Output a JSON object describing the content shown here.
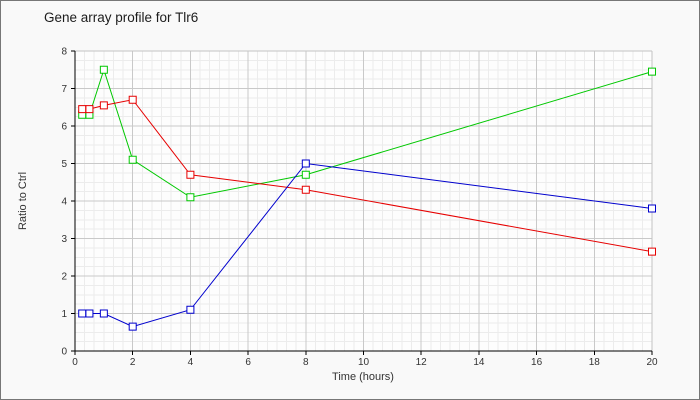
{
  "window": {
    "title": "Gene array profile for Tlr6"
  },
  "chart_data": {
    "type": "line",
    "title": "Gene array profile for Tlr6",
    "xlabel": "Time (hours)",
    "ylabel": "Ratio to Ctrl",
    "xlim": [
      0,
      20
    ],
    "ylim": [
      0,
      8
    ],
    "x_ticks": [
      0,
      2,
      4,
      6,
      8,
      10,
      12,
      14,
      16,
      18,
      20
    ],
    "y_ticks": [
      0,
      1,
      2,
      3,
      4,
      5,
      6,
      7,
      8
    ],
    "grid": "major+minor",
    "legend": "none",
    "marker": "open-square",
    "x": [
      0.25,
      0.5,
      1,
      2,
      4,
      8,
      20
    ],
    "series": [
      {
        "name": "green",
        "color": "#00c800",
        "values": [
          6.3,
          6.3,
          7.5,
          5.1,
          4.1,
          4.7,
          7.45
        ]
      },
      {
        "name": "red",
        "color": "#e60000",
        "values": [
          6.45,
          6.45,
          6.55,
          6.7,
          4.7,
          4.3,
          2.65
        ]
      },
      {
        "name": "blue",
        "color": "#0000cd",
        "values": [
          1.0,
          1.0,
          1.0,
          0.65,
          1.1,
          5.0,
          3.8
        ]
      }
    ]
  },
  "style_colors": {
    "frame": "#c4c4c4",
    "grid_major": "#c9c9c9",
    "grid_minor": "#ececec",
    "axis": "#000000",
    "tick_text": "#333333",
    "plot_background": "#fdfdfd",
    "outer_background": "#f9f9f9"
  }
}
